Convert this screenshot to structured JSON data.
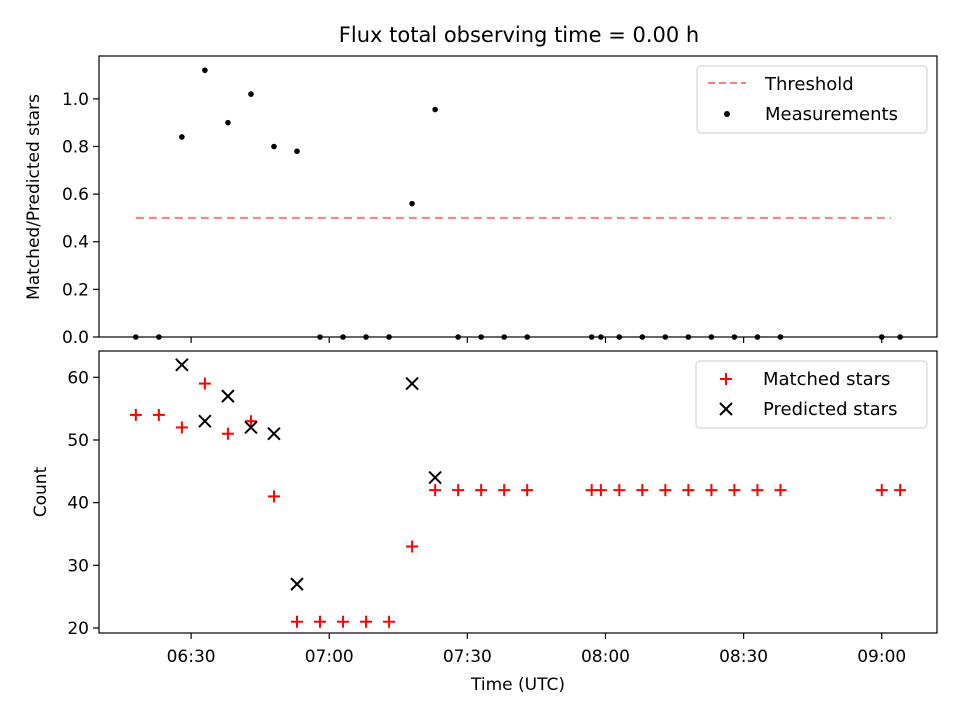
{
  "chart_data": {
    "title": "Flux total observing time = 0.00 h",
    "type": "scatter",
    "xlabel": "Time (UTC)",
    "x_tick_labels": [
      "06:30",
      "07:00",
      "07:30",
      "08:00",
      "08:30",
      "09:00"
    ],
    "x_tick_times": [
      "06:30",
      "07:00",
      "07:30",
      "08:00",
      "08:30",
      "09:00"
    ],
    "xlim": [
      "06:10",
      "09:12"
    ],
    "panels": [
      {
        "id": "ratio",
        "ylabel": "Matched/Predicted stars",
        "ylim": [
          0,
          1.18
        ],
        "y_ticks": [
          0.0,
          0.2,
          0.4,
          0.6,
          0.8,
          1.0
        ],
        "y_tick_labels": [
          "0.0",
          "0.2",
          "0.4",
          "0.6",
          "0.8",
          "1.0"
        ],
        "legend_position": "top-right",
        "series": [
          {
            "name": "Threshold",
            "kind": "line",
            "style": "dashed",
            "color": "#ff7b7b",
            "x": [
              "06:18",
              "09:02"
            ],
            "y": [
              0.5,
              0.5
            ]
          },
          {
            "name": "Measurements",
            "kind": "dots",
            "color": "#000000",
            "x": [
              "06:18",
              "06:23",
              "06:28",
              "06:33",
              "06:38",
              "06:43",
              "06:48",
              "06:53",
              "06:58",
              "07:03",
              "07:08",
              "07:13",
              "07:18",
              "07:23",
              "07:28",
              "07:33",
              "07:38",
              "07:43",
              "07:57",
              "07:59",
              "08:03",
              "08:08",
              "08:13",
              "08:18",
              "08:23",
              "08:28",
              "08:33",
              "08:38",
              "09:00",
              "09:04"
            ],
            "y": [
              0,
              0,
              0.84,
              1.12,
              0.9,
              1.02,
              0.8,
              0.78,
              0,
              0,
              0,
              0,
              0.56,
              0.955,
              0,
              0,
              0,
              0,
              0,
              0,
              0,
              0,
              0,
              0,
              0,
              0,
              0,
              0,
              0,
              0
            ]
          }
        ]
      },
      {
        "id": "count",
        "ylabel": "Count",
        "ylim": [
          19.2,
          64.2
        ],
        "y_ticks": [
          20,
          30,
          40,
          50,
          60
        ],
        "y_tick_labels": [
          "20",
          "30",
          "40",
          "50",
          "60"
        ],
        "legend_position": "top-right",
        "series": [
          {
            "name": "Matched stars",
            "kind": "plus",
            "color": "#ff0000",
            "x": [
              "06:18",
              "06:23",
              "06:28",
              "06:33",
              "06:38",
              "06:43",
              "06:48",
              "06:53",
              "06:58",
              "07:03",
              "07:08",
              "07:13",
              "07:18",
              "07:23",
              "07:28",
              "07:33",
              "07:38",
              "07:43",
              "07:57",
              "07:59",
              "08:03",
              "08:08",
              "08:13",
              "08:18",
              "08:23",
              "08:28",
              "08:33",
              "08:38",
              "09:00",
              "09:04"
            ],
            "y": [
              54,
              54,
              52,
              59,
              51,
              53,
              41,
              21,
              21,
              21,
              21,
              21,
              33,
              42,
              42,
              42,
              42,
              42,
              42,
              42,
              42,
              42,
              42,
              42,
              42,
              42,
              42,
              42,
              42,
              42
            ]
          },
          {
            "name": "Predicted stars",
            "kind": "cross",
            "color": "#000000",
            "x": [
              "06:28",
              "06:33",
              "06:38",
              "06:43",
              "06:48",
              "06:53",
              "07:18",
              "07:23"
            ],
            "y": [
              62,
              53,
              57,
              52,
              51,
              27,
              59,
              44
            ]
          }
        ]
      }
    ]
  }
}
